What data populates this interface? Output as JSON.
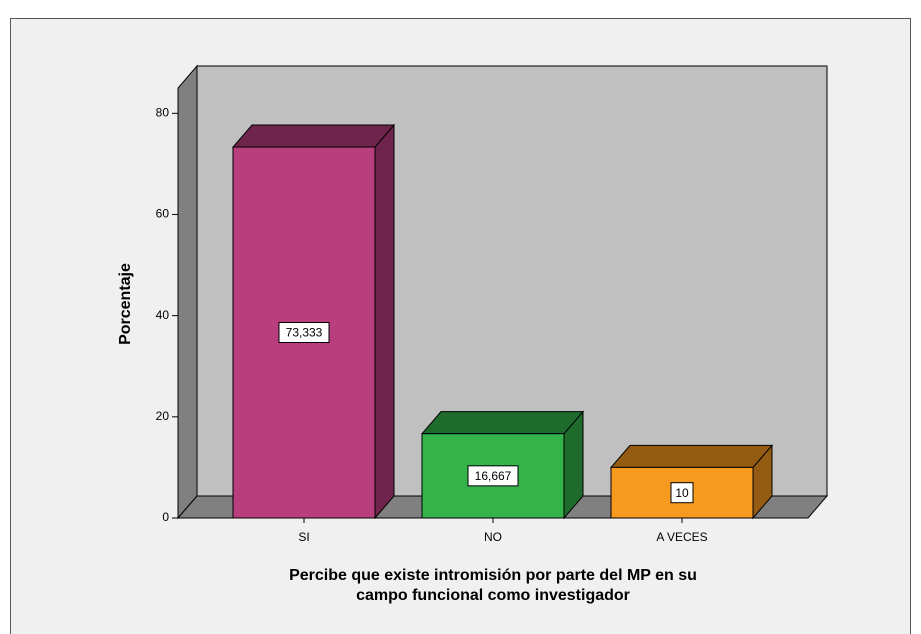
{
  "chart_data": {
    "type": "bar3d",
    "categories": [
      "SI",
      "NO",
      "A VECES"
    ],
    "values": [
      73.333,
      16.667,
      10
    ],
    "value_labels": [
      "73,333",
      "16,667",
      "10"
    ],
    "colors": [
      "#b93e7d",
      "#33b34a",
      "#f79a20"
    ],
    "ylabel": "Porcentaje",
    "xlabel": [
      "Percibe que existe intromisión por parte del MP en su",
      "campo funcional  como investigador"
    ],
    "ylim": [
      0,
      85
    ],
    "yticks": [
      0,
      20,
      40,
      60,
      80
    ]
  }
}
